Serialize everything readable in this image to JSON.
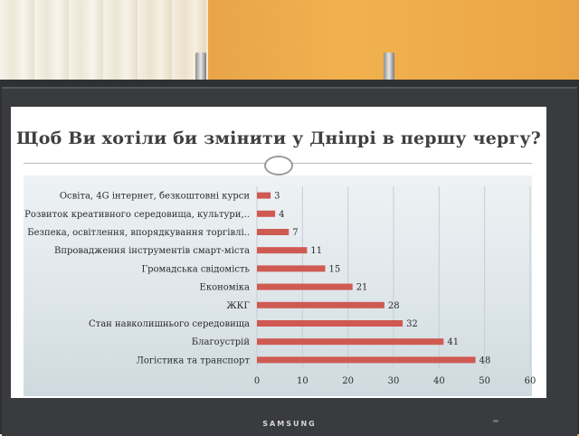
{
  "chart_data": {
    "type": "bar",
    "orientation": "horizontal",
    "title": "Щоб Ви хотіли би змінити у Дніпрі в першу чергу?",
    "categories": [
      "Освіта, 4G інтернет, безкоштовні курси",
      "Розвиток креативного середовища, культури,..",
      "Безпека, освітлення, впорядкування торгівлі..",
      "Впровадження інструментів смарт-міста",
      "Громадська свідомість",
      "Економіка",
      "ЖКГ",
      "Стан навколишнього середовища",
      "Благоустрій",
      "Логістика та транспорт"
    ],
    "values": [
      3,
      4,
      7,
      11,
      15,
      21,
      28,
      32,
      41,
      48
    ],
    "xlim": [
      0,
      60
    ],
    "xticks": [
      "0",
      "10",
      "20",
      "30",
      "40",
      "50",
      "60"
    ],
    "grid": true,
    "bar_color": "#cf5a52",
    "data_labels": true
  },
  "brand": "SAMSUNG",
  "colors": {
    "bar": "#cf5a52",
    "title": "#3f3f3f"
  }
}
